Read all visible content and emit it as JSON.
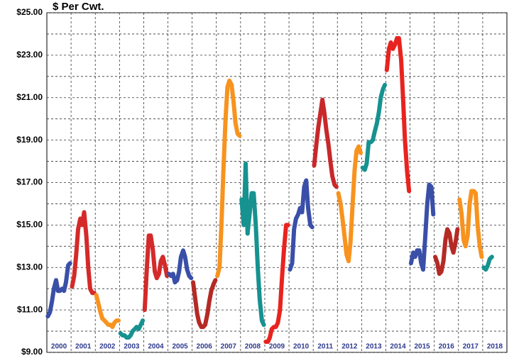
{
  "chart_data": {
    "type": "line",
    "title": "$ Per Cwt.",
    "xlim": [
      2000,
      2019
    ],
    "ylim": [
      9,
      25
    ],
    "yticks": [
      {
        "value": 9,
        "label": "$9.00"
      },
      {
        "value": 11,
        "label": "$11.00"
      },
      {
        "value": 13,
        "label": "$13.00"
      },
      {
        "value": 15,
        "label": "$15.00"
      },
      {
        "value": 17,
        "label": "$17.00"
      },
      {
        "value": 19,
        "label": "$19.00"
      },
      {
        "value": 21,
        "label": "$21.00"
      },
      {
        "value": 23,
        "label": "$23.00"
      },
      {
        "value": 25,
        "label": "$25.00"
      }
    ],
    "grid": true,
    "series": [
      {
        "name": "2000",
        "color": "#3a4fa8",
        "x": [
          2000.04,
          2000.13,
          2000.21,
          2000.29,
          2000.38,
          2000.46,
          2000.54,
          2000.63,
          2000.71,
          2000.79,
          2000.88,
          2000.96
        ],
        "values": [
          10.7,
          10.9,
          11.4,
          12.0,
          12.4,
          11.9,
          11.9,
          12.0,
          11.9,
          12.3,
          13.1,
          13.2
        ]
      },
      {
        "name": "2001",
        "color": "#d42a2a",
        "x": [
          2001.04,
          2001.13,
          2001.21,
          2001.29,
          2001.38,
          2001.46,
          2001.54,
          2001.63,
          2001.71,
          2001.79,
          2001.88,
          2001.96
        ],
        "values": [
          12.1,
          12.6,
          13.6,
          14.8,
          15.3,
          15.0,
          15.6,
          14.5,
          13.0,
          12.0,
          11.8,
          11.8
        ]
      },
      {
        "name": "2002",
        "color": "#f7931e",
        "x": [
          2002.04,
          2002.13,
          2002.21,
          2002.29,
          2002.38,
          2002.46,
          2002.54,
          2002.63,
          2002.71,
          2002.79,
          2002.88,
          2002.96
        ],
        "values": [
          11.7,
          11.3,
          10.9,
          10.6,
          10.5,
          10.4,
          10.3,
          10.3,
          10.2,
          10.4,
          10.5,
          10.5
        ]
      },
      {
        "name": "2003",
        "color": "#169290",
        "x": [
          2003.04,
          2003.13,
          2003.21,
          2003.29,
          2003.38,
          2003.46,
          2003.54,
          2003.63,
          2003.71,
          2003.79,
          2003.88,
          2003.96
        ],
        "values": [
          9.9,
          9.8,
          9.8,
          9.7,
          9.7,
          9.8,
          10.0,
          10.1,
          10.2,
          10.1,
          10.3,
          10.5
        ]
      },
      {
        "name": "2004",
        "color": "#d42a2a",
        "x": [
          2004.04,
          2004.13,
          2004.21,
          2004.29,
          2004.38,
          2004.46,
          2004.54,
          2004.63,
          2004.71,
          2004.79,
          2004.88,
          2004.96
        ],
        "values": [
          11.0,
          13.0,
          14.5,
          14.5,
          13.8,
          12.8,
          12.5,
          12.7,
          13.3,
          13.5,
          13.1,
          12.6
        ]
      },
      {
        "name": "2005",
        "color": "#3a4fa8",
        "x": [
          2005.04,
          2005.13,
          2005.21,
          2005.29,
          2005.38,
          2005.46,
          2005.54,
          2005.63,
          2005.71,
          2005.79,
          2005.88,
          2005.96
        ],
        "values": [
          12.7,
          12.6,
          12.7,
          12.3,
          12.4,
          12.8,
          13.5,
          13.8,
          13.5,
          12.9,
          12.6,
          12.5
        ]
      },
      {
        "name": "2006",
        "color": "#b52a25",
        "x": [
          2006.04,
          2006.13,
          2006.21,
          2006.29,
          2006.38,
          2006.46,
          2006.54,
          2006.63,
          2006.71,
          2006.79,
          2006.88,
          2006.96
        ],
        "values": [
          12.3,
          11.5,
          10.8,
          10.4,
          10.2,
          10.2,
          10.3,
          10.8,
          11.4,
          11.9,
          12.2,
          12.4
        ]
      },
      {
        "name": "2007",
        "color": "#f7931e",
        "x": [
          2007.04,
          2007.13,
          2007.21,
          2007.29,
          2007.38,
          2007.46,
          2007.54,
          2007.63,
          2007.71,
          2007.79,
          2007.88,
          2007.96
        ],
        "values": [
          12.6,
          13.0,
          15.0,
          17.5,
          20.0,
          21.5,
          21.8,
          21.6,
          20.8,
          19.8,
          19.3,
          19.2
        ]
      },
      {
        "name": "2008",
        "color": "#169290",
        "x": [
          2008.04,
          2008.13,
          2008.21,
          2008.29,
          2008.38,
          2008.46,
          2008.54,
          2008.63,
          2008.71,
          2008.79,
          2008.88,
          2008.96
        ],
        "values": [
          16.2,
          15.0,
          17.9,
          14.6,
          15.6,
          16.5,
          16.5,
          15.0,
          13.0,
          11.5,
          10.5,
          10.3
        ]
      },
      {
        "name": "2009",
        "color": "#e8231f",
        "x": [
          2009.04,
          2009.13,
          2009.21,
          2009.29,
          2009.38,
          2009.46,
          2009.54,
          2009.63,
          2009.71,
          2009.79,
          2009.88,
          2009.96
        ],
        "values": [
          9.5,
          9.5,
          9.7,
          10.1,
          10.2,
          10.2,
          10.4,
          11.0,
          12.5,
          13.8,
          15.0,
          15.0
        ]
      },
      {
        "name": "2010",
        "color": "#3a4fa8",
        "x": [
          2010.04,
          2010.13,
          2010.21,
          2010.29,
          2010.38,
          2010.46,
          2010.54,
          2010.63,
          2010.71,
          2010.79,
          2010.88,
          2010.96
        ],
        "values": [
          12.9,
          13.2,
          14.8,
          15.3,
          15.5,
          15.8,
          15.6,
          16.8,
          17.1,
          15.8,
          15.0,
          14.9
        ]
      },
      {
        "name": "2011",
        "color": "#c8282a",
        "x": [
          2011.04,
          2011.13,
          2011.21,
          2011.29,
          2011.38,
          2011.46,
          2011.54,
          2011.63,
          2011.71,
          2011.79,
          2011.88,
          2011.96
        ],
        "values": [
          17.8,
          18.8,
          19.6,
          20.2,
          20.9,
          20.3,
          19.5,
          18.8,
          18.0,
          17.3,
          16.9,
          16.8
        ]
      },
      {
        "name": "2012",
        "color": "#f7931e",
        "x": [
          2012.04,
          2012.13,
          2012.21,
          2012.29,
          2012.38,
          2012.46,
          2012.54,
          2012.63,
          2012.71,
          2012.79,
          2012.88,
          2012.96
        ],
        "values": [
          16.5,
          16.0,
          15.3,
          14.5,
          13.6,
          13.3,
          14.2,
          16.0,
          17.6,
          18.5,
          18.7,
          18.4
        ]
      },
      {
        "name": "2013",
        "color": "#169290",
        "x": [
          2013.04,
          2013.13,
          2013.21,
          2013.29,
          2013.38,
          2013.46,
          2013.54,
          2013.63,
          2013.71,
          2013.79,
          2013.88,
          2013.96
        ],
        "values": [
          17.7,
          17.6,
          17.9,
          18.9,
          18.9,
          19.0,
          19.4,
          19.8,
          20.3,
          21.0,
          21.4,
          21.6
        ]
      },
      {
        "name": "2014",
        "color": "#e8231f",
        "x": [
          2014.04,
          2014.13,
          2014.21,
          2014.29,
          2014.38,
          2014.46,
          2014.54,
          2014.63,
          2014.71,
          2014.79,
          2014.88,
          2014.96
        ],
        "values": [
          22.3,
          23.3,
          23.6,
          23.3,
          23.5,
          23.8,
          23.8,
          22.8,
          21.0,
          19.0,
          17.5,
          16.6
        ]
      },
      {
        "name": "2015",
        "color": "#3a4fa8",
        "x": [
          2015.04,
          2015.13,
          2015.21,
          2015.29,
          2015.38,
          2015.46,
          2015.54,
          2015.63,
          2015.71,
          2015.79,
          2015.88,
          2015.96
        ],
        "values": [
          13.2,
          13.7,
          13.5,
          13.8,
          13.8,
          13.2,
          12.9,
          14.5,
          16.0,
          16.9,
          16.8,
          15.5
        ]
      },
      {
        "name": "2016",
        "color": "#b52a25",
        "x": [
          2016.04,
          2016.13,
          2016.21,
          2016.29,
          2016.38,
          2016.46,
          2016.54,
          2016.63,
          2016.71,
          2016.79,
          2016.88,
          2016.96
        ],
        "values": [
          13.5,
          13.2,
          12.7,
          12.8,
          13.3,
          14.3,
          14.8,
          14.6,
          14.0,
          13.7,
          14.2,
          14.8
        ]
      },
      {
        "name": "2017",
        "color": "#f7931e",
        "x": [
          2017.04,
          2017.13,
          2017.21,
          2017.29,
          2017.38,
          2017.46,
          2017.54,
          2017.63,
          2017.71,
          2017.79,
          2017.88,
          2017.96
        ],
        "values": [
          16.2,
          15.5,
          14.3,
          14.0,
          14.5,
          16.0,
          16.6,
          16.6,
          16.5,
          15.0,
          14.0,
          13.5
        ]
      },
      {
        "name": "2018",
        "color": "#169290",
        "x": [
          2018.04,
          2018.13,
          2018.21,
          2018.29,
          2018.38
        ],
        "values": [
          13.0,
          12.9,
          13.1,
          13.4,
          13.5
        ]
      }
    ]
  }
}
